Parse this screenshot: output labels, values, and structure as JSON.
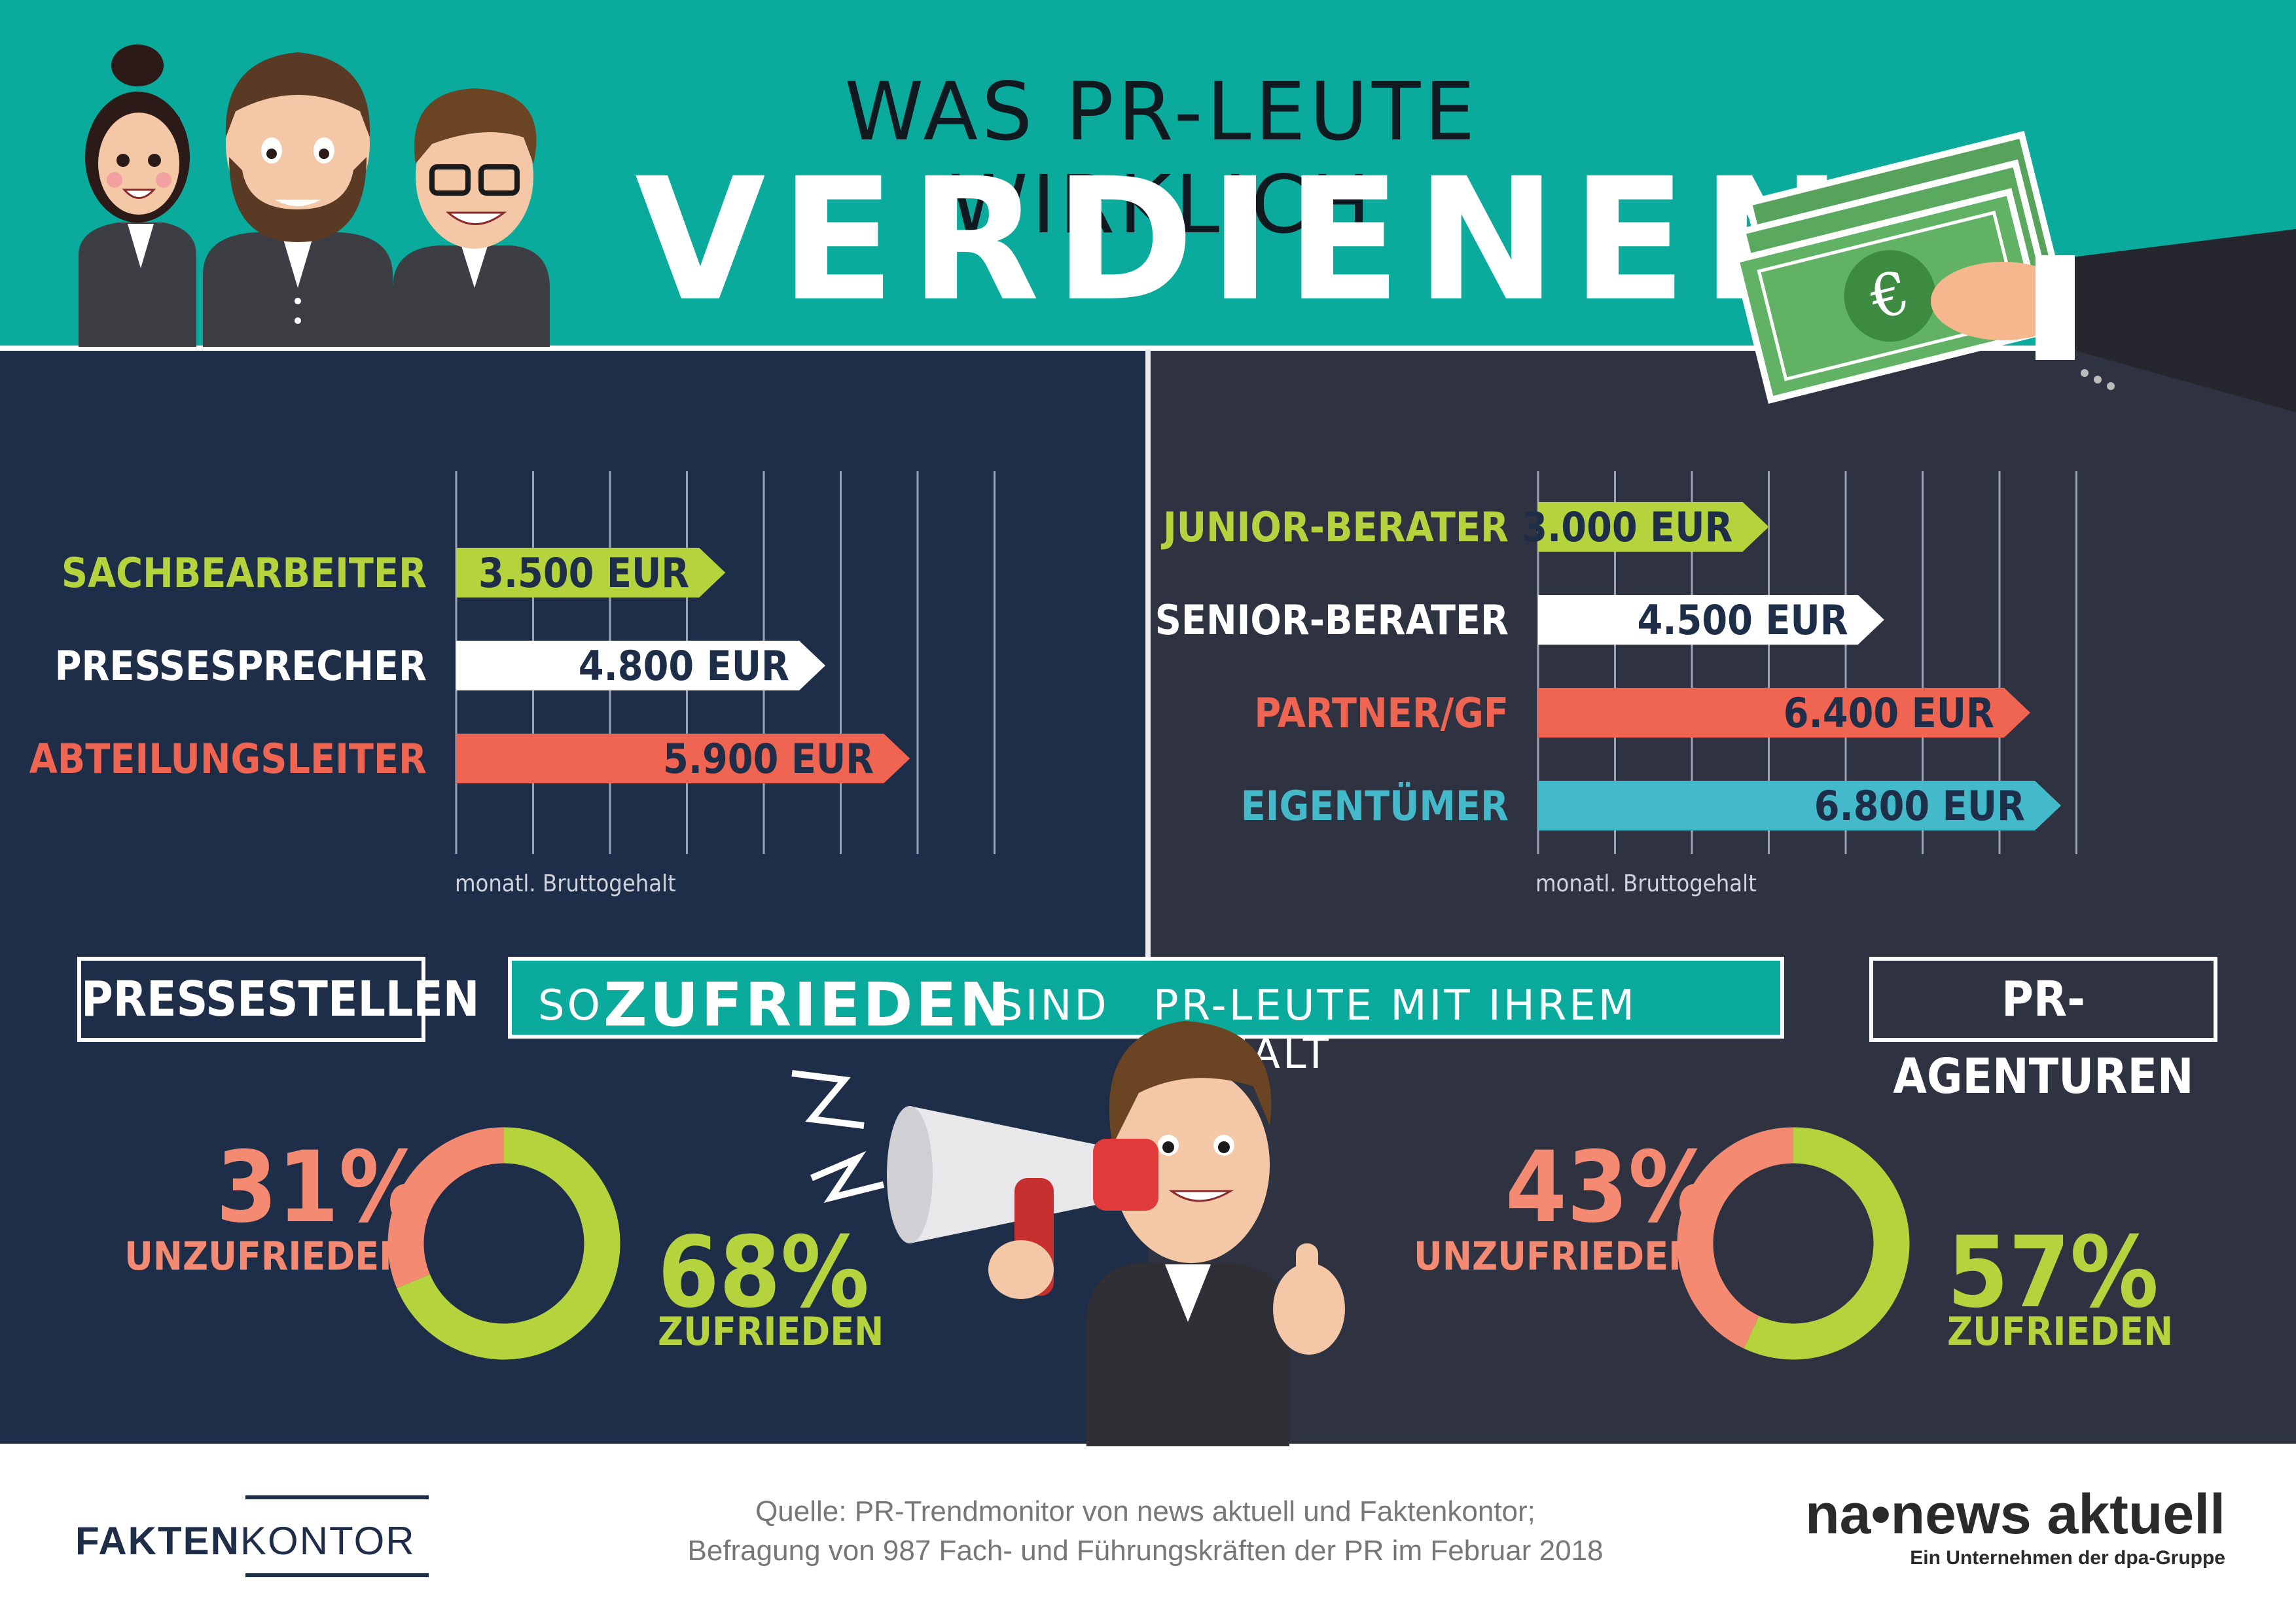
{
  "title": {
    "line1": "WAS PR-LEUTE WIRKLICH",
    "line2": "VERDIENEN"
  },
  "colors": {
    "teal": "#0aaa9c",
    "green": "#b5d33d",
    "white": "#ffffff",
    "red": "#f06452",
    "cyan": "#43b9c9",
    "navy": "#1e2d48",
    "charcoal": "#2f3241"
  },
  "sections": {
    "left_label": "PRESSESTELLEN",
    "right_label": "PR-AGENTUREN"
  },
  "banner": {
    "prefix": "SO",
    "highlight": "ZUFRIEDEN",
    "middle": "SIND",
    "suffix": "PR-LEUTE MIT IHREM GEHALT"
  },
  "chart_data": [
    {
      "type": "bar",
      "name": "PRESSESTELLEN",
      "categories": [
        "SACHBEARBEITER",
        "PRESSESPRECHER",
        "ABTEILUNGSLEITER"
      ],
      "values": [
        3500,
        4800,
        5900
      ],
      "value_labels": [
        "3.500 EUR",
        "4.800 EUR",
        "5.900 EUR"
      ],
      "colors": [
        "#b5d33d",
        "#ffffff",
        "#f06452"
      ],
      "xlabel": "monatl. Bruttogehalt",
      "xlim": [
        0,
        7000
      ]
    },
    {
      "type": "bar",
      "name": "PR-AGENTUREN",
      "categories": [
        "JUNIOR-BERATER",
        "SENIOR-BERATER",
        "PARTNER/GF",
        "EIGENTÜMER"
      ],
      "values": [
        3000,
        4500,
        6400,
        6800
      ],
      "value_labels": [
        "3.000 EUR",
        "4.500 EUR",
        "6.400 EUR",
        "6.800 EUR"
      ],
      "colors": [
        "#b5d33d",
        "#ffffff",
        "#f06452",
        "#43b9c9"
      ],
      "xlabel": "monatl. Bruttogehalt",
      "xlim": [
        0,
        7000
      ]
    },
    {
      "type": "pie",
      "name": "PRESSESTELLEN",
      "labels": [
        "UNZUFRIEDEN",
        "ZUFRIEDEN"
      ],
      "values": [
        31,
        68
      ],
      "display": [
        "31%",
        "68%"
      ],
      "colors": [
        "#f48a72",
        "#b5d33d"
      ]
    },
    {
      "type": "pie",
      "name": "PR-AGENTUREN",
      "labels": [
        "UNZUFRIEDEN",
        "ZUFRIEDEN"
      ],
      "values": [
        43,
        57
      ],
      "display": [
        "43%",
        "57%"
      ],
      "colors": [
        "#f48a72",
        "#b5d33d"
      ]
    }
  ],
  "footer": {
    "source_line1": "Quelle: PR-Trendmonitor von news aktuell und Faktenkontor;",
    "source_line2": "Befragung von 987 Fach- und Führungskräften der PR im Februar 2018",
    "logo_left_bold": "FAKTEN",
    "logo_left_light": "KONTOR",
    "logo_right_main": "na•news aktuell",
    "logo_right_sub": "Ein Unternehmen der dpa-Gruppe"
  },
  "icons": [
    "business-people-illustration",
    "money-hand-icon",
    "euro-icon",
    "megaphone-man-illustration"
  ]
}
